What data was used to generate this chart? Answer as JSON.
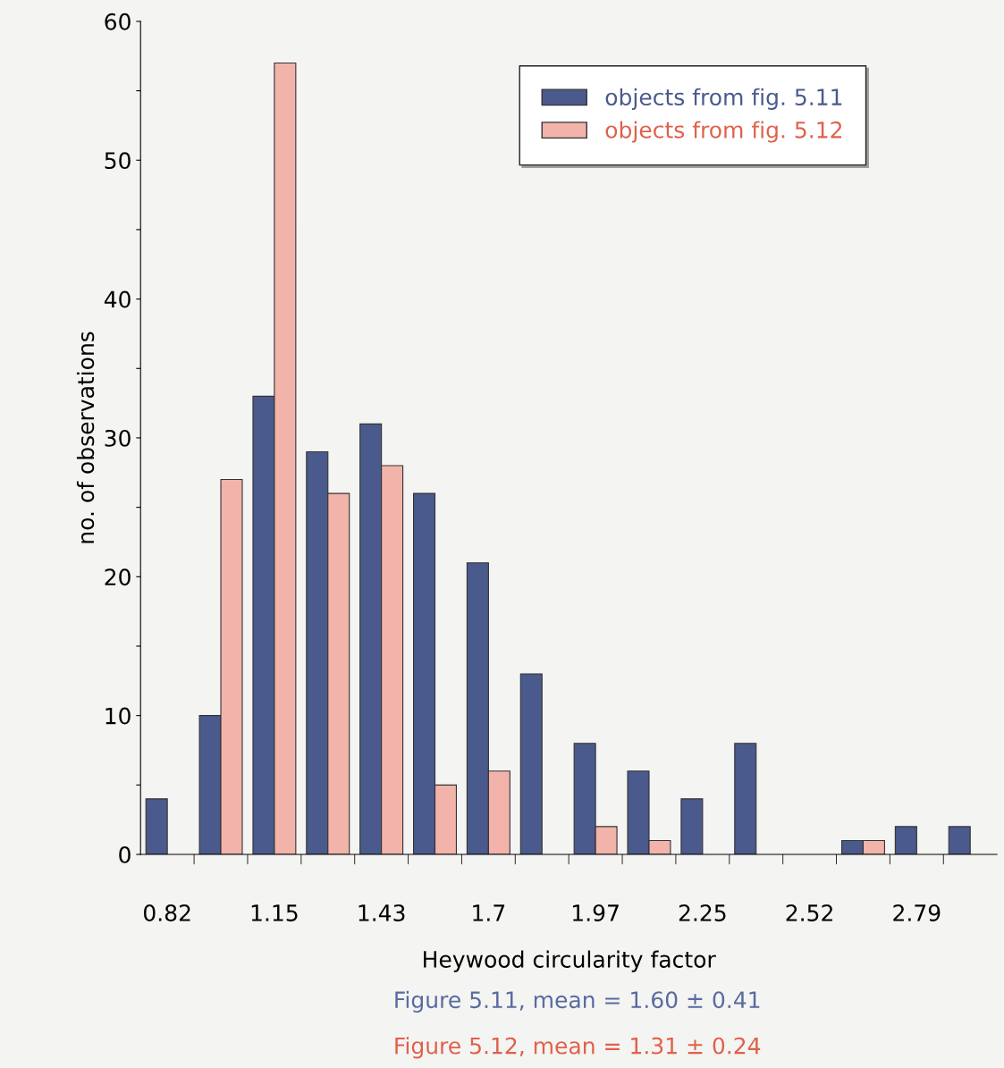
{
  "chart_data": {
    "type": "bar",
    "xlabel": "Heywood circularity factor",
    "ylabel": "no. of observations",
    "categories": [
      "0.82",
      null,
      "1.15",
      null,
      "1.43",
      null,
      "1.7",
      null,
      "1.97",
      null,
      "2.25",
      null,
      "2.52",
      null,
      "2.79",
      null
    ],
    "series": [
      {
        "name": "objects from fig. 5.11",
        "color": "#4a5a8c",
        "values": [
          4,
          10,
          33,
          29,
          31,
          26,
          21,
          13,
          8,
          6,
          4,
          8,
          0,
          1,
          2,
          2
        ]
      },
      {
        "name": "objects from fig. 5.12",
        "color": "#f2b3aa",
        "values": [
          0,
          27,
          57,
          26,
          28,
          5,
          6,
          0,
          2,
          1,
          0,
          0,
          0,
          1,
          0,
          0
        ]
      }
    ],
    "ylim": [
      0,
      60
    ],
    "yticks": [
      0,
      {
        "value": 5,
        "label": null
      },
      10,
      {
        "value": 15,
        "label": null
      },
      20,
      {
        "value": 25,
        "label": null
      },
      30,
      {
        "value": 35,
        "label": null
      },
      40,
      {
        "value": 45,
        "label": null
      },
      50,
      {
        "value": 55,
        "label": null
      },
      60
    ],
    "legend": "top right",
    "grid": false,
    "annotations": [
      "Figure 5.11, mean = 1.60 ± 0.41",
      "Figure 5.12, mean = 1.31 ± 0.24"
    ]
  }
}
